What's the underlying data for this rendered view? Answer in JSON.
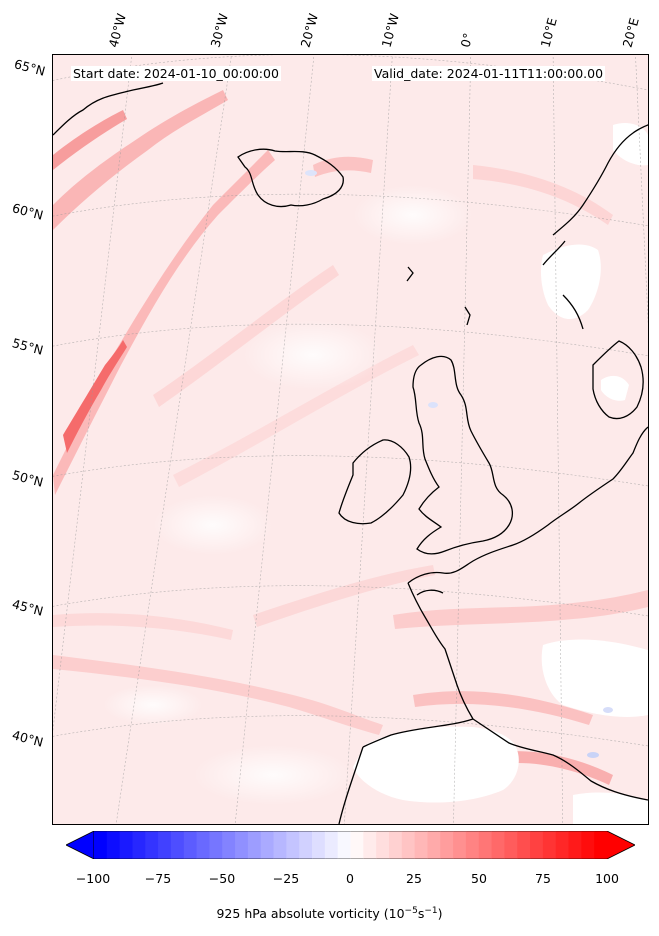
{
  "header": {
    "start_date": "Start date: 2024-01-10_00:00:00",
    "valid_date": "Valid_date: 2024-01-11T11:00:00.00"
  },
  "map": {
    "projection": "conic",
    "lon_labels": [
      "40°W",
      "30°W",
      "20°W",
      "10°W",
      "0°",
      "10°E",
      "20°E"
    ],
    "lat_labels": [
      "65°N",
      "60°N",
      "55°N",
      "50°N",
      "45°N",
      "40°N"
    ],
    "field": "925 hPa absolute vorticity",
    "background_color": "#fdeaea",
    "coastline_color": "#000000"
  },
  "colorbar": {
    "label": "925 hPa absolute vorticity (10$^{-5}$s$^{-1}$)",
    "display_label": "925 hPa absolute vorticity (10",
    "unit_exp1": "−5",
    "unit_mid": "s",
    "unit_exp2": "−1",
    "unit_close": ")",
    "ticks": [
      "−100",
      "−75",
      "−50",
      "−25",
      "0",
      "25",
      "50",
      "75",
      "100"
    ],
    "min": -100,
    "max": 100,
    "extend": "both",
    "colors": {
      "low": "#0000ff",
      "mid": "#ffffff",
      "high": "#ff0000"
    }
  }
}
